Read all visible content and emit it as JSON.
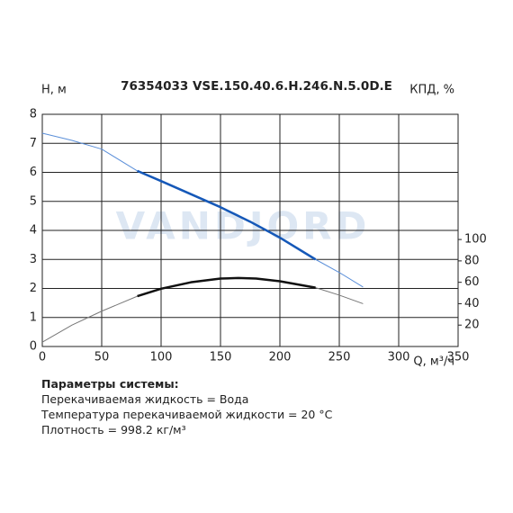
{
  "chart_data": {
    "type": "line",
    "title": "76354033 VSE.150.40.6.H.246.N.5.0D.E",
    "ylabel": "H, м",
    "y2label": "КПД, %",
    "xlabel": "Q, м³/ч",
    "watermark": "VANDJORD",
    "xlim": [
      0,
      350
    ],
    "xticks": [
      0,
      50,
      100,
      150,
      200,
      250,
      300,
      350
    ],
    "ylim": [
      0,
      8
    ],
    "yticks": [
      0,
      1,
      2,
      3,
      4,
      5,
      6,
      7,
      8
    ],
    "y2lim": [
      0,
      217
    ],
    "y2ticks": [
      20,
      40,
      60,
      80,
      100
    ],
    "grid": true,
    "series": [
      {
        "color": "#5b8fd9",
        "width": 1,
        "x": [
          0,
          25,
          50,
          80,
          100,
          125,
          150,
          175,
          200,
          230,
          250,
          270
        ],
        "values": [
          7.35,
          7.1,
          6.8,
          6.05,
          5.7,
          5.25,
          4.8,
          4.3,
          3.75,
          3.0,
          2.55,
          2.05
        ]
      },
      {
        "color": "#1558b8",
        "width": 2.5,
        "x": [
          80,
          100,
          125,
          150,
          175,
          200,
          230
        ],
        "values": [
          6.05,
          5.7,
          5.25,
          4.8,
          4.3,
          3.75,
          3.0
        ]
      },
      {
        "color": "#777777",
        "width": 1,
        "axis": "y2",
        "x": [
          0,
          25,
          50,
          80,
          100,
          125,
          150,
          165,
          180,
          200,
          230,
          250,
          270
        ],
        "values": [
          4,
          20,
          33,
          47,
          54,
          60,
          63.5,
          64,
          63.5,
          61,
          55,
          48,
          40
        ]
      },
      {
        "color": "#111111",
        "width": 2.5,
        "axis": "y2",
        "x": [
          80,
          100,
          125,
          150,
          165,
          180,
          200,
          230
        ],
        "values": [
          47,
          54,
          60,
          63.5,
          64,
          63.5,
          61,
          55
        ]
      }
    ]
  },
  "info": {
    "heading": "Параметры системы:",
    "lines": [
      "Перекачиваемая жидкость = Вода",
      "Температура перекачиваемой жидкости = 20 °C",
      "Плотность = 998.2 кг/м³"
    ]
  }
}
